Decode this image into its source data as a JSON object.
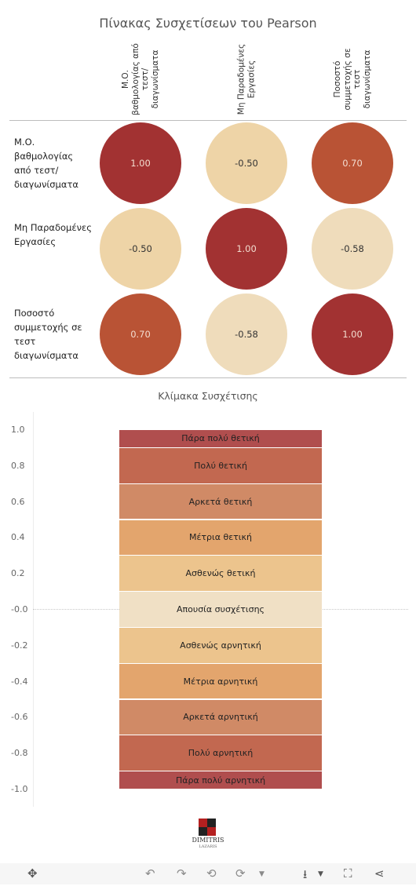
{
  "title": "Πίνακας Συσχετίσεων του Pearson",
  "columns": [
    "Μ.Ο. βαθμολογίας από τεστ/ διαγωνίσματα",
    "Μη Παραδομένες Εργασίες",
    "Ποσοστό συμμετοχής σε τεστ διαγωνίσματα"
  ],
  "rows": [
    "Μ.Ο. βαθμολογίας από τεστ/ διαγωνίσματα",
    "Μη Παραδομένες Εργασίες",
    "Ποσοστό συμμετοχής σε τεστ διαγωνίσματα"
  ],
  "cells": [
    [
      "1.00",
      "-0.50",
      "0.70"
    ],
    [
      "-0.50",
      "1.00",
      "-0.58"
    ],
    [
      "0.70",
      "-0.58",
      "1.00"
    ]
  ],
  "chart_data": [
    {
      "type": "heatmap",
      "title": "Πίνακας Συσχετίσεων του Pearson",
      "x_categories": [
        "Μ.Ο. βαθμολογίας από τεστ/ διαγωνίσματα",
        "Μη Παραδομένες Εργασίες",
        "Ποσοστό συμμετοχής σε τεστ διαγωνίσματα"
      ],
      "y_categories": [
        "Μ.Ο. βαθμολογίας από τεστ/ διαγωνίσματα",
        "Μη Παραδομένες Εργασίες",
        "Ποσοστό συμμετοχής σε τεστ διαγωνίσματα"
      ],
      "values": [
        [
          1.0,
          -0.5,
          0.7
        ],
        [
          -0.5,
          1.0,
          -0.58
        ],
        [
          0.7,
          -0.58,
          1.0
        ]
      ],
      "mark": "circle"
    },
    {
      "type": "bar",
      "title": "Κλίμακα Συσχέτισης",
      "ylim": [
        -1.0,
        1.0
      ],
      "yticks": [
        "1.0",
        "0.8",
        "0.6",
        "0.4",
        "0.2",
        "-0.0",
        "-0.2",
        "-0.4",
        "-0.6",
        "-0.8",
        "-1.0"
      ],
      "bands": [
        {
          "label": "Πάρα πολύ θετική",
          "from": 0.9,
          "to": 1.0,
          "color": "#b04e4e"
        },
        {
          "label": "Πολύ θετική",
          "from": 0.7,
          "to": 0.9,
          "color": "#c26850"
        },
        {
          "label": "Αρκετά θετική",
          "from": 0.5,
          "to": 0.7,
          "color": "#d08a66"
        },
        {
          "label": "Μέτρια θετική",
          "from": 0.3,
          "to": 0.5,
          "color": "#e3a56d"
        },
        {
          "label": "Ασθενώς θετική",
          "from": 0.1,
          "to": 0.3,
          "color": "#ecc48d"
        },
        {
          "label": "Απουσία συσχέτισης",
          "from": -0.1,
          "to": 0.1,
          "color": "#f0e0c5"
        },
        {
          "label": "Ασθενώς αρνητική",
          "from": -0.3,
          "to": -0.1,
          "color": "#ecc48d"
        },
        {
          "label": "Μέτρια αρνητική",
          "from": -0.5,
          "to": -0.3,
          "color": "#e3a56d"
        },
        {
          "label": "Αρκετά αρνητική",
          "from": -0.7,
          "to": -0.5,
          "color": "#d08a66"
        },
        {
          "label": "Πολύ αρνητική",
          "from": -0.9,
          "to": -0.7,
          "color": "#c26850"
        },
        {
          "label": "Πάρα πολύ αρνητική",
          "from": -1.0,
          "to": -0.9,
          "color": "#b04e4e"
        }
      ]
    }
  ],
  "logo": {
    "line1": "DIMITRIS",
    "line2": "LAZARIS"
  },
  "toolbar": [
    "move-icon",
    "undo-icon",
    "redo-icon",
    "revert-icon",
    "refresh-icon",
    "download-icon",
    "fullscreen-icon",
    "share-icon"
  ]
}
